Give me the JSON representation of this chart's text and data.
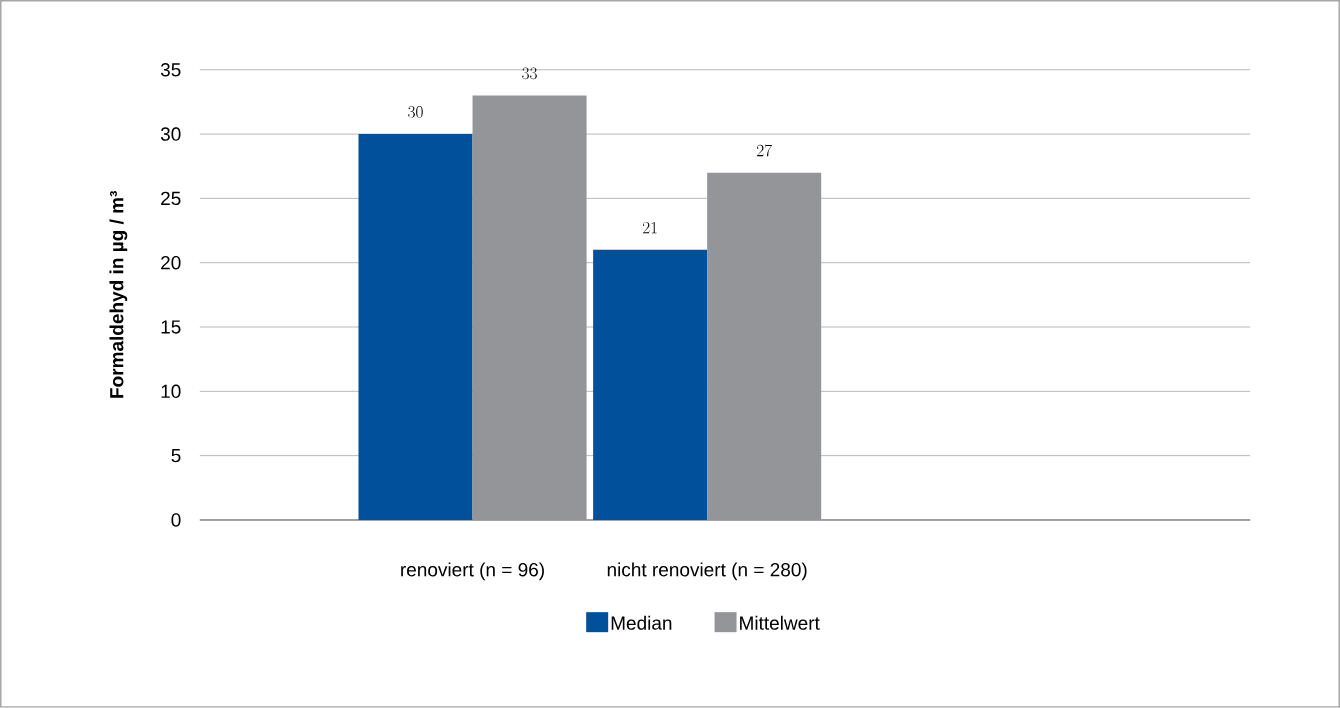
{
  "chart_data": {
    "type": "bar",
    "ylabel": "Formaldehyd in µg / m³",
    "categories": [
      "renoviert (n = 96)",
      "nicht renoviert (n = 280)"
    ],
    "series": [
      {
        "name": "Median",
        "color": "#00509b",
        "values": [
          30,
          21
        ]
      },
      {
        "name": "Mittelwert",
        "color": "#949599",
        "values": [
          33,
          27
        ]
      }
    ],
    "ylim": [
      0,
      35
    ],
    "yticks": [
      0,
      5,
      10,
      15,
      20,
      25,
      30,
      35
    ],
    "grid": "y",
    "legend": "bottom",
    "data_labels": true
  }
}
